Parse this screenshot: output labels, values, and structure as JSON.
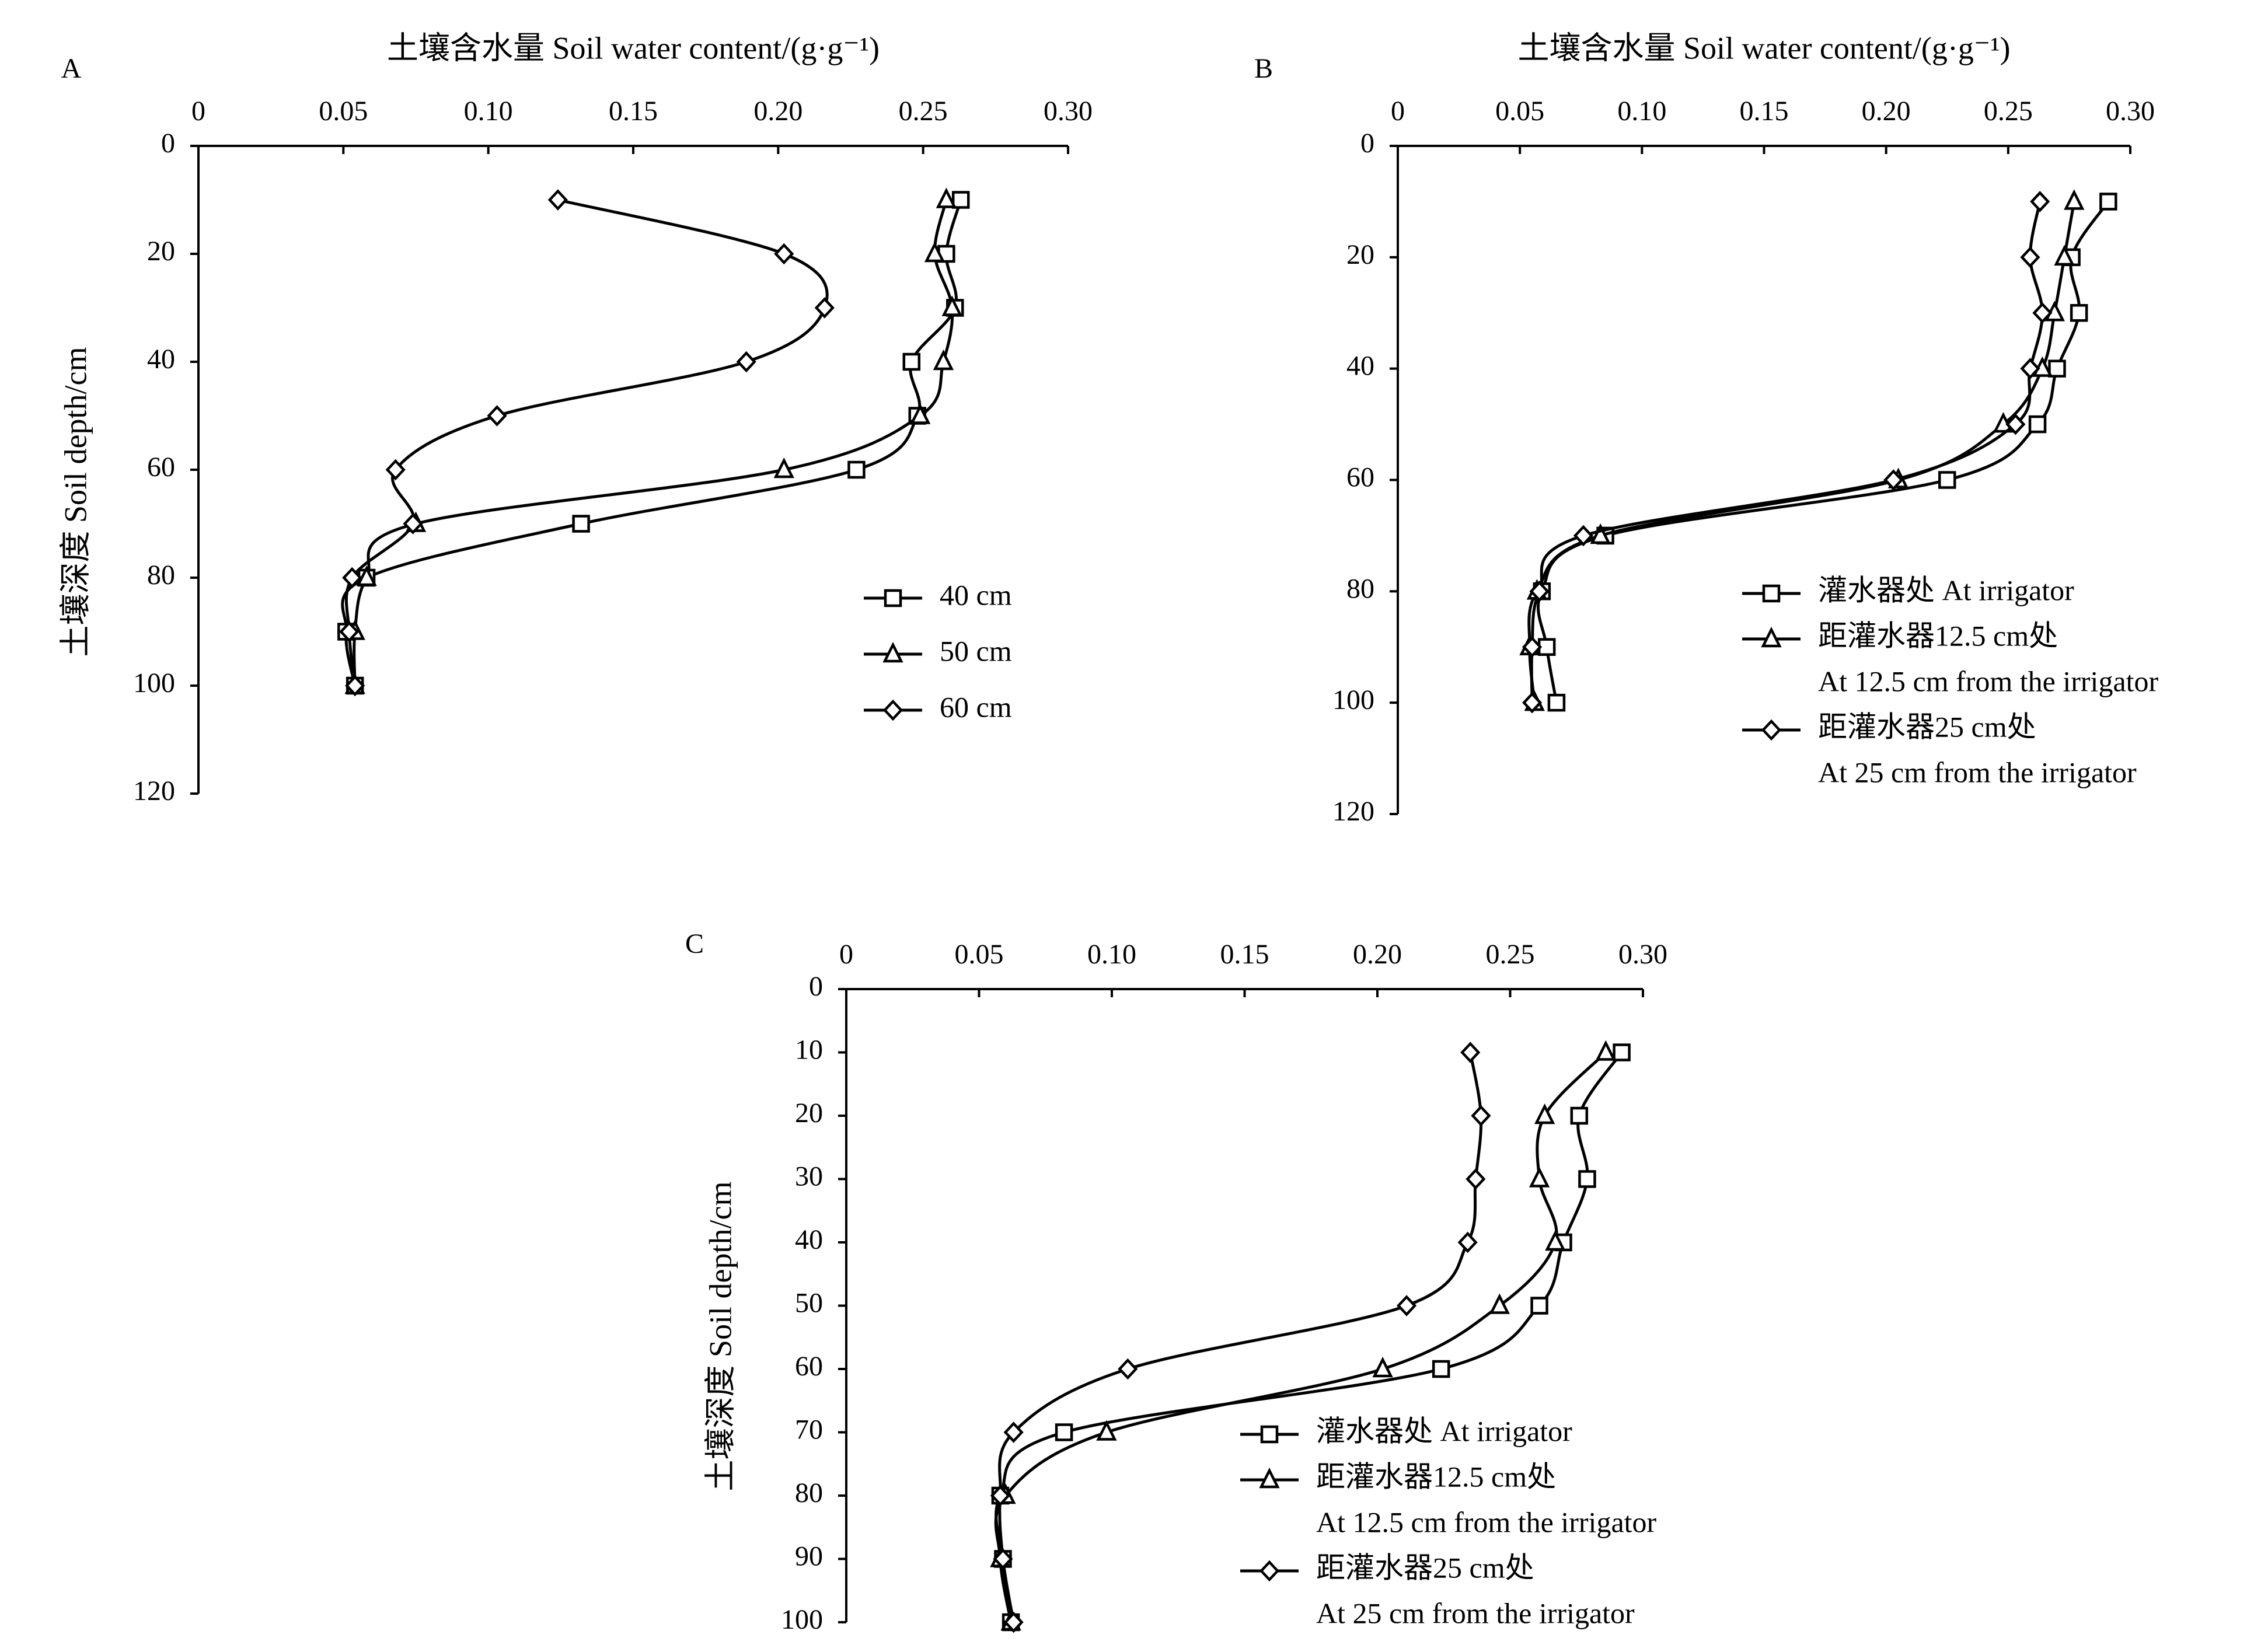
{
  "figure": {
    "x_title": "土壤含水量 Soil water content/(g·g⁻¹)",
    "y_title": "土壤深度 Soil depth/cm"
  },
  "chart_data": [
    {
      "panel_label": "A",
      "type": "line",
      "orientation": "depth-profile",
      "x_axis": {
        "title": "土壤含水量 Soil water content/(g·g⁻¹)",
        "range": [
          0,
          0.3
        ],
        "ticks": [
          "0",
          "0.05",
          "0.10",
          "0.15",
          "0.20",
          "0.25",
          "0.30"
        ],
        "position": "top"
      },
      "y_axis": {
        "title": "土壤深度 Soil depth/cm",
        "range": [
          0,
          120
        ],
        "ticks": [
          "0",
          "20",
          "40",
          "60",
          "80",
          "100",
          "120"
        ],
        "inverted": true
      },
      "legend": {
        "placement": "right-middle"
      },
      "series": [
        {
          "name": "40 cm",
          "marker": "square",
          "points": [
            [
              0.263,
              10
            ],
            [
              0.258,
              20
            ],
            [
              0.261,
              30
            ],
            [
              0.246,
              40
            ],
            [
              0.248,
              50
            ],
            [
              0.227,
              60
            ],
            [
              0.132,
              70
            ],
            [
              0.058,
              80
            ],
            [
              0.051,
              90
            ],
            [
              0.054,
              100
            ]
          ]
        },
        {
          "name": "50 cm",
          "marker": "triangle",
          "points": [
            [
              0.258,
              10
            ],
            [
              0.254,
              20
            ],
            [
              0.26,
              30
            ],
            [
              0.257,
              40
            ],
            [
              0.249,
              50
            ],
            [
              0.202,
              60
            ],
            [
              0.075,
              70
            ],
            [
              0.058,
              80
            ],
            [
              0.054,
              90
            ],
            [
              0.054,
              100
            ]
          ]
        },
        {
          "name": "60 cm",
          "marker": "diamond",
          "points": [
            [
              0.124,
              10
            ],
            [
              0.202,
              20
            ],
            [
              0.216,
              30
            ],
            [
              0.189,
              40
            ],
            [
              0.103,
              50
            ],
            [
              0.068,
              60
            ],
            [
              0.074,
              70
            ],
            [
              0.053,
              80
            ],
            [
              0.052,
              90
            ],
            [
              0.054,
              100
            ]
          ]
        }
      ]
    },
    {
      "panel_label": "B",
      "type": "line",
      "orientation": "depth-profile",
      "x_axis": {
        "title": "土壤含水量 Soil water content/(g·g⁻¹)",
        "range": [
          0,
          0.3
        ],
        "ticks": [
          "0",
          "0.05",
          "0.10",
          "0.15",
          "0.20",
          "0.25",
          "0.30"
        ],
        "position": "top"
      },
      "y_axis": {
        "title": "",
        "range": [
          0,
          120
        ],
        "ticks": [
          "0",
          "20",
          "40",
          "60",
          "80",
          "100",
          "120"
        ],
        "inverted": true
      },
      "legend": {
        "placement": "bottom-right"
      },
      "series": [
        {
          "name": "灌水器处 At irrigator",
          "name_line2": "",
          "marker": "square",
          "points": [
            [
              0.291,
              10
            ],
            [
              0.276,
              20
            ],
            [
              0.279,
              30
            ],
            [
              0.27,
              40
            ],
            [
              0.262,
              50
            ],
            [
              0.225,
              60
            ],
            [
              0.085,
              70
            ],
            [
              0.059,
              80
            ],
            [
              0.061,
              90
            ],
            [
              0.065,
              100
            ]
          ]
        },
        {
          "name": "距灌水器12.5 cm处",
          "name_line2": "At 12.5 cm from the irrigator",
          "marker": "triangle",
          "points": [
            [
              0.277,
              10
            ],
            [
              0.273,
              20
            ],
            [
              0.269,
              30
            ],
            [
              0.264,
              40
            ],
            [
              0.248,
              50
            ],
            [
              0.205,
              60
            ],
            [
              0.083,
              70
            ],
            [
              0.057,
              80
            ],
            [
              0.054,
              90
            ],
            [
              0.056,
              100
            ]
          ]
        },
        {
          "name": "距灌水器25 cm处",
          "name_line2": "At 25 cm from the irrigator",
          "marker": "diamond",
          "points": [
            [
              0.263,
              10
            ],
            [
              0.259,
              20
            ],
            [
              0.264,
              30
            ],
            [
              0.259,
              40
            ],
            [
              0.253,
              50
            ],
            [
              0.203,
              60
            ],
            [
              0.076,
              70
            ],
            [
              0.058,
              80
            ],
            [
              0.055,
              90
            ],
            [
              0.055,
              100
            ]
          ]
        }
      ]
    },
    {
      "panel_label": "C",
      "type": "line",
      "orientation": "depth-profile",
      "x_axis": {
        "title": "",
        "range": [
          0,
          0.3
        ],
        "ticks": [
          "0",
          "0.05",
          "0.10",
          "0.15",
          "0.20",
          "0.25",
          "0.30"
        ],
        "position": "top"
      },
      "y_axis": {
        "title": "土壤深度 Soil depth/cm",
        "range": [
          0,
          100
        ],
        "ticks": [
          "0",
          "10",
          "20",
          "30",
          "40",
          "50",
          "60",
          "70",
          "80",
          "90",
          "100"
        ],
        "inverted": true
      },
      "legend": {
        "placement": "bottom-right"
      },
      "series": [
        {
          "name": "灌水器处 At irrigator",
          "name_line2": "",
          "marker": "square",
          "points": [
            [
              0.292,
              10
            ],
            [
              0.276,
              20
            ],
            [
              0.279,
              30
            ],
            [
              0.27,
              40
            ],
            [
              0.261,
              50
            ],
            [
              0.224,
              60
            ],
            [
              0.082,
              70
            ],
            [
              0.058,
              80
            ],
            [
              0.059,
              90
            ],
            [
              0.062,
              100
            ]
          ]
        },
        {
          "name": "距灌水器12.5 cm处",
          "name_line2": "At 12.5 cm from the irrigator",
          "marker": "triangle",
          "points": [
            [
              0.286,
              10
            ],
            [
              0.263,
              20
            ],
            [
              0.261,
              30
            ],
            [
              0.267,
              40
            ],
            [
              0.246,
              50
            ],
            [
              0.202,
              60
            ],
            [
              0.098,
              70
            ],
            [
              0.06,
              80
            ],
            [
              0.058,
              90
            ],
            [
              0.062,
              100
            ]
          ]
        },
        {
          "name": "距灌水器25 cm处",
          "name_line2": "At 25 cm from the irrigator",
          "marker": "diamond",
          "points": [
            [
              0.235,
              10
            ],
            [
              0.239,
              20
            ],
            [
              0.237,
              30
            ],
            [
              0.234,
              40
            ],
            [
              0.211,
              50
            ],
            [
              0.106,
              60
            ],
            [
              0.063,
              70
            ],
            [
              0.058,
              80
            ],
            [
              0.059,
              90
            ],
            [
              0.063,
              100
            ]
          ]
        }
      ]
    }
  ]
}
